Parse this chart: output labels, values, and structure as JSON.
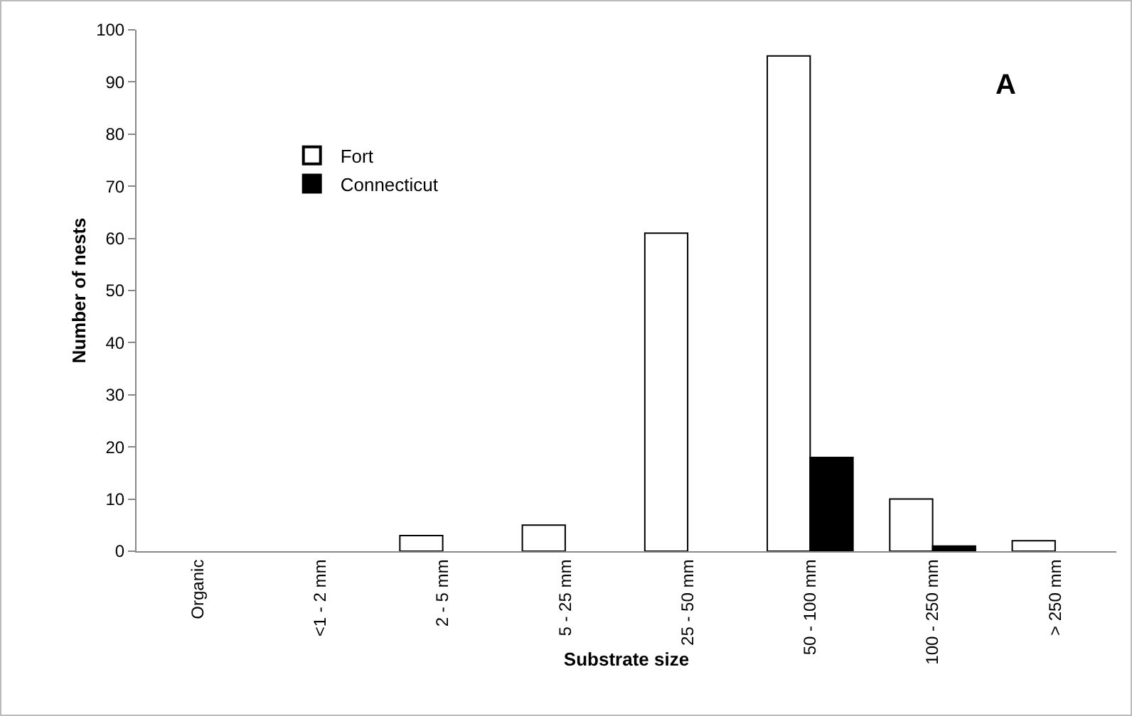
{
  "chart_data": {
    "type": "bar",
    "xlabel": "Substrate size",
    "ylabel": "Number of nests",
    "categories": [
      "Organic",
      "<1 - 2 mm",
      "2 - 5 mm",
      "5 - 25 mm",
      "25 - 50 mm",
      "50 - 100 mm",
      "100 - 250 mm",
      "> 250 mm"
    ],
    "series": [
      {
        "name": "Fort",
        "color": "#ffffff",
        "values": [
          0,
          0,
          3,
          5,
          61,
          95,
          10,
          2
        ]
      },
      {
        "name": "Connecticut",
        "color": "#000000",
        "values": [
          0,
          0,
          0,
          0,
          0,
          18,
          1,
          0
        ]
      }
    ],
    "ylim": [
      0,
      100
    ],
    "yticks": [
      0,
      10,
      20,
      30,
      40,
      50,
      60,
      70,
      80,
      90,
      100
    ],
    "grid": false,
    "legend": "top left",
    "annotations": [
      "A"
    ]
  }
}
